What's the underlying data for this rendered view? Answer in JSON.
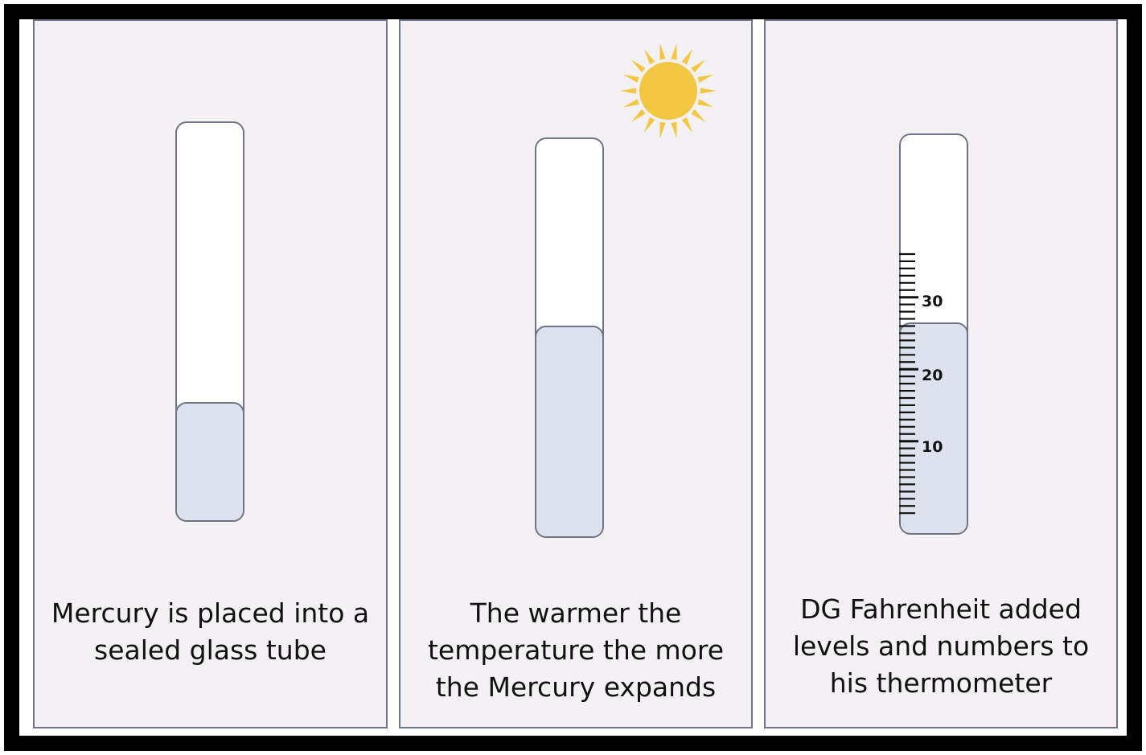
{
  "panels": [
    {
      "caption": "Mercury is placed into a\nsealed glass tube",
      "fill_fraction": 0.3
    },
    {
      "caption": "The warmer the\ntemperature the more\nthe Mercury expands",
      "fill_fraction": 0.53
    },
    {
      "caption": "DG Fahrenheit added\nlevels and numbers to\nhis thermometer",
      "fill_fraction": 0.53
    }
  ],
  "scale": {
    "labels": [
      "10",
      "20",
      "30"
    ]
  },
  "colors": {
    "panel_bg": "#f4f1f4",
    "outline": "#6f7585",
    "mercury": "#dde2ee",
    "sun": "#f2c744"
  },
  "icons": {
    "sun": "sun-icon"
  }
}
